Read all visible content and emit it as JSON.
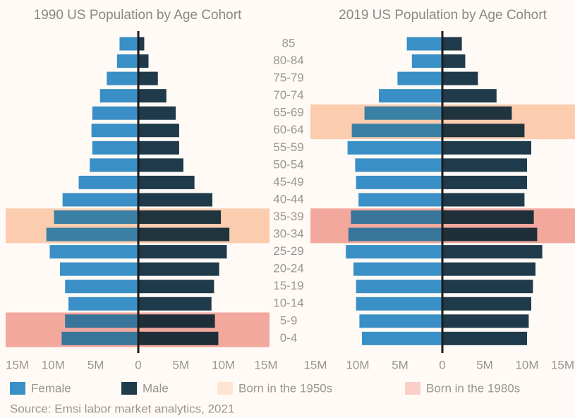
{
  "chart_data": {
    "type": "bar",
    "orientation": "horizontal",
    "categories": [
      "85",
      "80-84",
      "75-79",
      "70-74",
      "65-69",
      "60-64",
      "55-59",
      "50-54",
      "45-49",
      "40-44",
      "35-39",
      "30-34",
      "25-29",
      "20-24",
      "15-19",
      "10-14",
      "5-9",
      "0-4"
    ],
    "xlim": [
      -15,
      15
    ],
    "xticks": [
      {
        "value": -15,
        "label": "15M"
      },
      {
        "value": -10,
        "label": "10M"
      },
      {
        "value": -5,
        "label": "5M"
      },
      0,
      {
        "value": 5,
        "label": "5M"
      },
      {
        "value": 10,
        "label": "10M"
      },
      {
        "value": 15,
        "label": "15M"
      }
    ],
    "series": [
      {
        "name": "Female",
        "color": "#3a8fc6"
      },
      {
        "name": "Male",
        "color": "#1f3a4a"
      }
    ],
    "highlights": [
      {
        "name": "Born in the 1950s",
        "color": "#fde4d3"
      },
      {
        "name": "Born in the 1980s",
        "color": "#f9cfc8"
      }
    ],
    "panels": [
      {
        "title": "1990 US Population by Age Cohort",
        "series": [
          {
            "values": [
              -2.2,
              -2.5,
              -3.7,
              -4.5,
              -5.4,
              -5.5,
              -5.4,
              -5.7,
              -7.0,
              -8.9,
              -9.9,
              -10.8,
              -10.4,
              -9.2,
              -8.6,
              -8.2,
              -8.6,
              -9.0
            ]
          },
          {
            "values": [
              0.7,
              1.2,
              2.3,
              3.3,
              4.4,
              4.8,
              4.8,
              5.3,
              6.6,
              8.7,
              9.7,
              10.7,
              10.4,
              9.5,
              8.9,
              8.6,
              9.0,
              9.4
            ]
          }
        ],
        "highlight_rows": [
          [
            "35-39",
            "30-34"
          ],
          [
            "5-9",
            "0-4"
          ]
        ]
      },
      {
        "title": "2019 US Population by Age Cohort",
        "series": [
          {
            "values": [
              -4.2,
              -3.6,
              -5.3,
              -7.5,
              -9.2,
              -10.7,
              -11.2,
              -10.3,
              -10.2,
              -9.9,
              -10.8,
              -11.1,
              -11.4,
              -10.5,
              -10.2,
              -10.2,
              -9.8,
              -9.5
            ]
          },
          {
            "values": [
              2.3,
              2.7,
              4.2,
              6.4,
              8.2,
              9.7,
              10.5,
              10.0,
              10.0,
              9.7,
              10.8,
              11.2,
              11.8,
              11.0,
              10.7,
              10.5,
              10.2,
              10.0
            ]
          }
        ],
        "highlight_rows": [
          [
            "65-69",
            "60-64"
          ],
          [
            "35-39",
            "30-34"
          ]
        ]
      }
    ],
    "source": "Source: Emsi labor market analytics, 2021"
  }
}
